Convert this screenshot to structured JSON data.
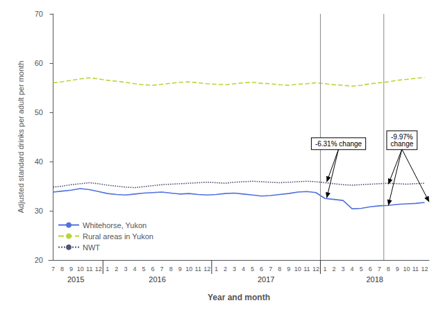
{
  "chart_data": {
    "type": "line",
    "xlabel": "Year and month",
    "ylabel": "Adjusted standard drinks per adult per month",
    "categories": [
      "7",
      "8",
      "9",
      "10",
      "11",
      "12",
      "1",
      "2",
      "3",
      "4",
      "5",
      "6",
      "7",
      "8",
      "9",
      "10",
      "11",
      "12",
      "1",
      "2",
      "3",
      "4",
      "5",
      "6",
      "7",
      "8",
      "9",
      "10",
      "11",
      "12",
      "1",
      "2",
      "3",
      "4",
      "5",
      "6",
      "7",
      "8",
      "9",
      "10",
      "11",
      "12"
    ],
    "series": [
      {
        "name": "Whitehorse, Yukon",
        "line_style": "solid",
        "values": [
          33.8,
          34.0,
          34.2,
          34.5,
          34.3,
          33.9,
          33.5,
          33.3,
          33.2,
          33.4,
          33.6,
          33.7,
          33.8,
          33.6,
          33.4,
          33.5,
          33.3,
          33.2,
          33.3,
          33.5,
          33.6,
          33.4,
          33.2,
          33.0,
          33.1,
          33.3,
          33.5,
          33.8,
          33.9,
          33.7,
          32.5,
          32.3,
          32.1,
          30.4,
          30.5,
          30.8,
          31.0,
          31.1,
          31.3,
          31.4,
          31.5,
          31.7
        ]
      },
      {
        "name": "Rural areas in Yukon",
        "line_style": "dashed",
        "values": [
          56.0,
          56.2,
          56.5,
          56.8,
          57.0,
          56.8,
          56.5,
          56.3,
          56.1,
          55.8,
          55.6,
          55.5,
          55.7,
          55.9,
          56.1,
          56.2,
          56.0,
          55.8,
          55.7,
          55.6,
          55.8,
          56.0,
          56.1,
          55.9,
          55.8,
          55.6,
          55.5,
          55.7,
          55.8,
          56.0,
          55.8,
          55.6,
          55.5,
          55.3,
          55.5,
          55.8,
          56.0,
          56.2,
          56.5,
          56.7,
          56.9,
          57.1
        ]
      },
      {
        "name": "NWT",
        "line_style": "dotted",
        "values": [
          34.8,
          35.0,
          35.3,
          35.5,
          35.7,
          35.5,
          35.2,
          35.0,
          34.8,
          34.7,
          34.9,
          35.1,
          35.3,
          35.4,
          35.5,
          35.6,
          35.7,
          35.8,
          35.7,
          35.6,
          35.8,
          35.9,
          36.0,
          35.9,
          35.8,
          35.7,
          35.8,
          35.9,
          36.0,
          35.9,
          35.7,
          35.5,
          35.3,
          35.2,
          35.3,
          35.4,
          35.5,
          35.6,
          35.5,
          35.4,
          35.5,
          35.6
        ]
      }
    ],
    "ylim": [
      20,
      70
    ],
    "yticks": [
      20,
      30,
      40,
      50,
      60,
      70
    ],
    "grid": false,
    "legend": "lower left",
    "year_groups": [
      {
        "label": "2015",
        "start": 0,
        "end": 5
      },
      {
        "label": "2016",
        "start": 6,
        "end": 17
      },
      {
        "label": "2017",
        "start": 18,
        "end": 29
      },
      {
        "label": "2018",
        "start": 30,
        "end": 41
      }
    ],
    "year_separators": [
      5.5,
      17.5,
      29.5
    ],
    "vlines": [
      29.5,
      36.5
    ],
    "annotations": [
      {
        "text": "-6.31% change",
        "x": 31.5,
        "y": 42.5,
        "arrows": [
          {
            "x": 30.2,
            "y": 32.6
          },
          {
            "x": 30.2,
            "y": 35.85
          }
        ]
      },
      {
        "text": "-9.97%\nchange",
        "x": 38.5,
        "y": 42.5,
        "arrows": [
          {
            "x": 37.0,
            "y": 31.1
          },
          {
            "x": 37.0,
            "y": 35.4
          },
          {
            "x": 41.5,
            "y": 31.8
          }
        ]
      }
    ]
  }
}
